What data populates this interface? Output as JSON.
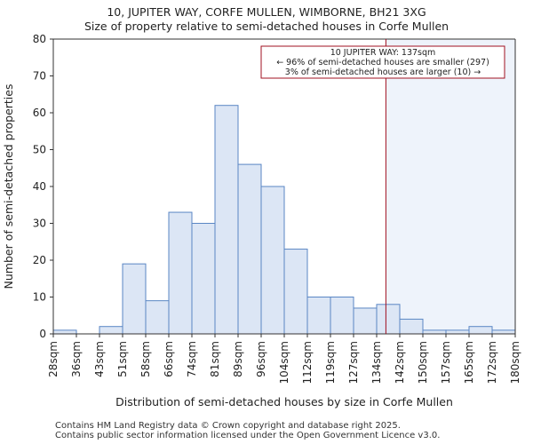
{
  "title_line1": "10, JUPITER WAY, CORFE MULLEN, WIMBORNE, BH21 3XG",
  "title_line2": "Size of property relative to semi-detached houses in Corfe Mullen",
  "footer_line1": "Contains HM Land Registry data © Crown copyright and database right 2025.",
  "footer_line2": "Contains public sector information licensed under the Open Government Licence v3.0.",
  "colors": {
    "bar_fill": "#dce6f5",
    "bar_stroke": "#5a86c4",
    "marker": "#a01020",
    "highlight": "#eef3fb"
  },
  "chart_data": {
    "type": "bar",
    "xlabel": "Distribution of semi-detached houses by size in Corfe Mullen",
    "ylabel": "Number of semi-detached properties",
    "ylim": [
      0,
      80
    ],
    "yticks": [
      0,
      10,
      20,
      30,
      40,
      50,
      60,
      70,
      80
    ],
    "grid": false,
    "bin_edges_labels": [
      "28sqm",
      "36sqm",
      "43sqm",
      "51sqm",
      "58sqm",
      "66sqm",
      "74sqm",
      "81sqm",
      "89sqm",
      "96sqm",
      "104sqm",
      "112sqm",
      "119sqm",
      "127sqm",
      "134sqm",
      "142sqm",
      "150sqm",
      "157sqm",
      "165sqm",
      "172sqm",
      "180sqm"
    ],
    "values": [
      1,
      0,
      2,
      19,
      9,
      33,
      30,
      62,
      46,
      40,
      23,
      10,
      10,
      7,
      8,
      4,
      1,
      1,
      2,
      1
    ],
    "marker": {
      "value_bin_position": 14.4,
      "label": "137sqm"
    },
    "annotation": {
      "line1": "10 JUPITER WAY: 137sqm",
      "line2": "← 96% of semi-detached houses are smaller (297)",
      "line3": "3% of semi-detached houses are larger (10) →"
    }
  }
}
